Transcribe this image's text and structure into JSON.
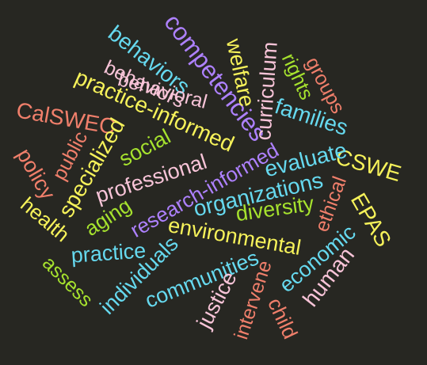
{
  "palette": {
    "background": "#272722",
    "blue": "#66d9ef",
    "purple": "#ae81ff",
    "pink": "#f8c4d8",
    "yellow": "#f6f25a",
    "green": "#a6e22e",
    "salmon": "#f07f6b"
  },
  "words": {
    "behaviors_top": "behaviors",
    "competencies": "competencies",
    "welfare": "welfare",
    "curriculum": "curriculum",
    "rights": "rights",
    "groups": "groups",
    "behaviors_mid": "behaviors",
    "practice_informed": "practice-informed",
    "behavioral": "behavioral",
    "calswec": "CalSWEC",
    "families": "families",
    "specialized": "specialized",
    "social": "social",
    "public": "public",
    "cswe": "CSWE",
    "policy": "policy",
    "evaluate": "evaluate",
    "professional": "professional",
    "research_informed": "research-informed",
    "organizations": "organizations",
    "ethical": "ethical",
    "health": "health",
    "aging": "aging",
    "epas": "EPAS",
    "diversity": "diversity",
    "environmental": "environmental",
    "practice": "practice",
    "individuals": "individuals",
    "economic": "economic",
    "assess": "assess",
    "human": "human",
    "communities": "communities",
    "justice": "justice",
    "intervene": "intervene",
    "child": "child"
  }
}
